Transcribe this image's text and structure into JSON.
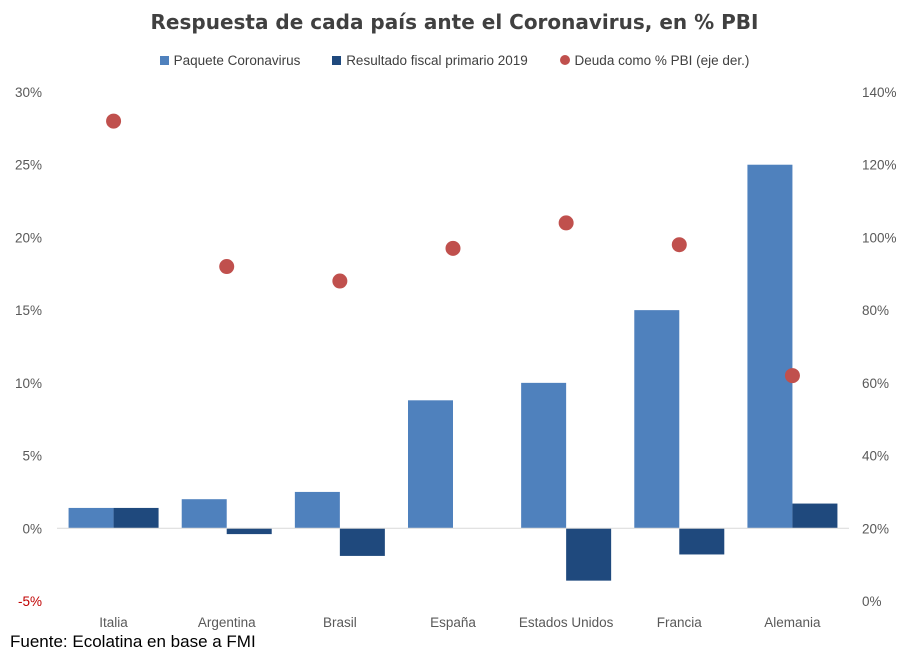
{
  "chart_data": {
    "type": "bar",
    "title": "Respuesta de cada país ante el Coronavirus, en % PBI",
    "categories": [
      "Italia",
      "Argentina",
      "Brasil",
      "España",
      "Estados Unidos",
      "Francia",
      "Alemania"
    ],
    "series": [
      {
        "name": "Paquete Coronavirus",
        "type": "bar",
        "axis": "left",
        "color": "#4f81bd",
        "values": [
          1.4,
          2.0,
          2.5,
          8.8,
          10.0,
          15.0,
          25.0
        ]
      },
      {
        "name": "Resultado fiscal primario 2019",
        "type": "bar",
        "axis": "left",
        "color": "#1f497d",
        "values": [
          1.4,
          -0.4,
          -1.9,
          0.0,
          -3.6,
          -1.8,
          1.7
        ]
      },
      {
        "name": "Deuda como % PBI (eje der.)",
        "type": "scatter",
        "axis": "right",
        "color": "#c0504d",
        "values": [
          132,
          92,
          88,
          97,
          104,
          98,
          62
        ]
      }
    ],
    "y_left": {
      "min": -5,
      "max": 30,
      "step": 5,
      "ticks": [
        "-5%",
        "0%",
        "5%",
        "10%",
        "15%",
        "20%",
        "25%",
        "30%"
      ],
      "negative_tick_color": "#c00000"
    },
    "y_right": {
      "min": 0,
      "max": 140,
      "step": 20,
      "ticks": [
        "0%",
        "20%",
        "40%",
        "60%",
        "80%",
        "100%",
        "120%",
        "140%"
      ]
    },
    "grid": false,
    "legend_position": "top"
  },
  "source": "Fuente: Ecolatina en base a FMI"
}
